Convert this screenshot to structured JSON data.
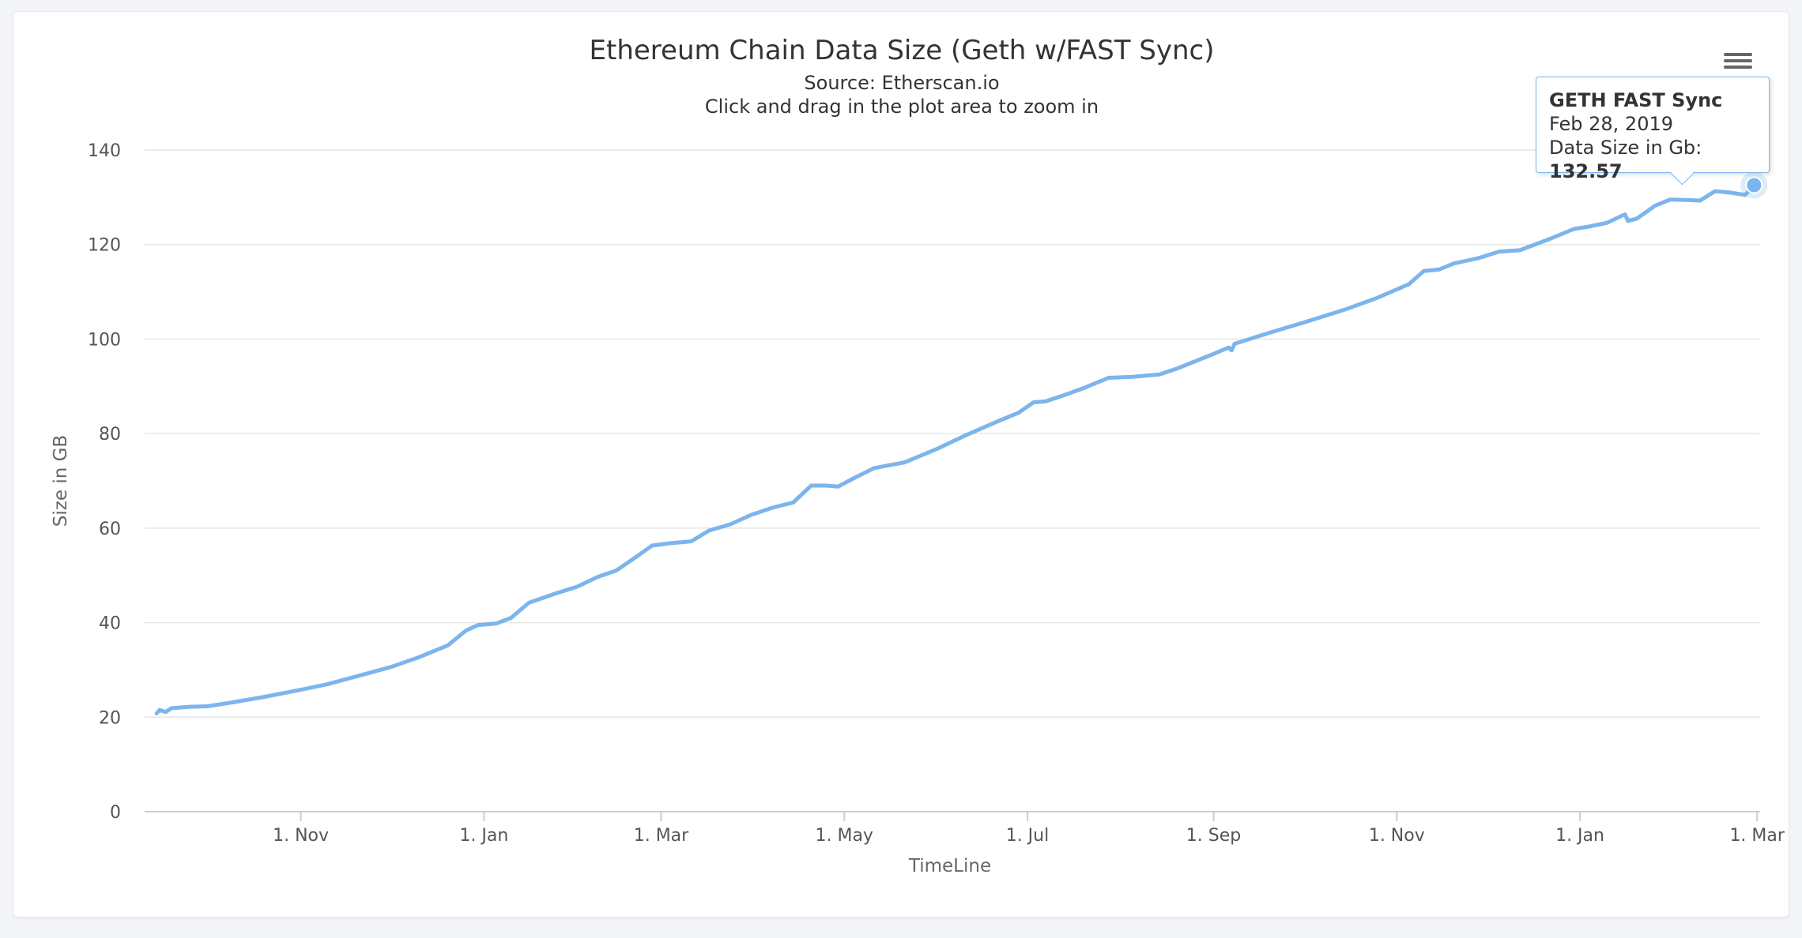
{
  "chart_data": {
    "type": "line",
    "title": "Ethereum Chain Data Size (Geth w/FAST Sync)",
    "subtitle": "Source: Etherscan.io",
    "subtitle2": "Click and drag in the plot area to zoom in",
    "xlabel": "TimeLine",
    "ylabel": "Size in GB",
    "ylim": [
      0,
      140
    ],
    "yticks": [
      0,
      20,
      40,
      60,
      80,
      100,
      120,
      140
    ],
    "xlim": [
      "2017-09-10",
      "2019-03-02"
    ],
    "xticks": [
      {
        "date": "2017-11-01",
        "label": "1. Nov"
      },
      {
        "date": "2018-01-01",
        "label": "1. Jan"
      },
      {
        "date": "2018-03-01",
        "label": "1. Mar"
      },
      {
        "date": "2018-05-01",
        "label": "1. May"
      },
      {
        "date": "2018-07-01",
        "label": "1. Jul"
      },
      {
        "date": "2018-09-01",
        "label": "1. Sep"
      },
      {
        "date": "2018-11-01",
        "label": "1. Nov"
      },
      {
        "date": "2019-01-01",
        "label": "1. Jan"
      },
      {
        "date": "2019-03-01",
        "label": "1. Mar"
      }
    ],
    "grid": true,
    "legend": "none",
    "color": "#7cb5ec",
    "series": [
      {
        "points": [
          [
            "2017-09-14",
            20.8
          ],
          [
            "2017-09-15",
            21.5
          ],
          [
            "2017-09-17",
            21.1
          ],
          [
            "2017-09-19",
            21.9
          ],
          [
            "2017-09-25",
            22.2
          ],
          [
            "2017-10-01",
            22.3
          ],
          [
            "2017-10-10",
            23.2
          ],
          [
            "2017-10-20",
            24.3
          ],
          [
            "2017-11-01",
            25.8
          ],
          [
            "2017-11-10",
            27.0
          ],
          [
            "2017-11-20",
            28.7
          ],
          [
            "2017-12-01",
            30.6
          ],
          [
            "2017-12-10",
            32.6
          ],
          [
            "2017-12-20",
            35.2
          ],
          [
            "2017-12-26",
            38.3
          ],
          [
            "2017-12-30",
            39.5
          ],
          [
            "2018-01-05",
            39.8
          ],
          [
            "2018-01-10",
            41.0
          ],
          [
            "2018-01-16",
            44.2
          ],
          [
            "2018-01-25",
            46.2
          ],
          [
            "2018-02-01",
            47.6
          ],
          [
            "2018-02-08",
            49.7
          ],
          [
            "2018-02-14",
            51.0
          ],
          [
            "2018-02-20",
            53.6
          ],
          [
            "2018-02-26",
            56.3
          ],
          [
            "2018-03-04",
            56.8
          ],
          [
            "2018-03-11",
            57.2
          ],
          [
            "2018-03-17",
            59.5
          ],
          [
            "2018-03-24",
            60.8
          ],
          [
            "2018-03-31",
            62.8
          ],
          [
            "2018-04-07",
            64.3
          ],
          [
            "2018-04-14",
            65.4
          ],
          [
            "2018-04-20",
            69.0
          ],
          [
            "2018-04-25",
            69.0
          ],
          [
            "2018-04-29",
            68.8
          ],
          [
            "2018-05-04",
            70.5
          ],
          [
            "2018-05-11",
            72.7
          ],
          [
            "2018-05-16",
            73.3
          ],
          [
            "2018-05-21",
            73.9
          ],
          [
            "2018-06-01",
            76.8
          ],
          [
            "2018-06-10",
            79.5
          ],
          [
            "2018-06-20",
            82.3
          ],
          [
            "2018-06-28",
            84.4
          ],
          [
            "2018-07-03",
            86.6
          ],
          [
            "2018-07-07",
            86.8
          ],
          [
            "2018-07-13",
            88.1
          ],
          [
            "2018-07-20",
            89.7
          ],
          [
            "2018-07-28",
            91.8
          ],
          [
            "2018-08-05",
            92.0
          ],
          [
            "2018-08-14",
            92.5
          ],
          [
            "2018-08-20",
            93.8
          ],
          [
            "2018-08-31",
            96.6
          ],
          [
            "2018-09-06",
            98.2
          ],
          [
            "2018-09-07",
            97.6
          ],
          [
            "2018-09-08",
            99.0
          ],
          [
            "2018-09-20",
            101.4
          ],
          [
            "2018-10-01",
            103.5
          ],
          [
            "2018-10-15",
            106.3
          ],
          [
            "2018-10-25",
            108.6
          ],
          [
            "2018-11-05",
            111.6
          ],
          [
            "2018-11-10",
            114.4
          ],
          [
            "2018-11-15",
            114.7
          ],
          [
            "2018-11-20",
            116.0
          ],
          [
            "2018-11-28",
            117.1
          ],
          [
            "2018-12-05",
            118.5
          ],
          [
            "2018-12-12",
            118.8
          ],
          [
            "2018-12-22",
            121.2
          ],
          [
            "2018-12-30",
            123.3
          ],
          [
            "2019-01-04",
            123.8
          ],
          [
            "2019-01-10",
            124.6
          ],
          [
            "2019-01-16",
            126.4
          ],
          [
            "2019-01-17",
            125.0
          ],
          [
            "2019-01-20",
            125.5
          ],
          [
            "2019-01-26",
            128.2
          ],
          [
            "2019-01-31",
            129.5
          ],
          [
            "2019-02-06",
            129.4
          ],
          [
            "2019-02-10",
            129.3
          ],
          [
            "2019-02-15",
            131.3
          ],
          [
            "2019-02-20",
            131.0
          ],
          [
            "2019-02-25",
            130.5
          ],
          [
            "2019-02-28",
            132.57
          ]
        ]
      }
    ]
  },
  "tooltip": {
    "series": "GETH FAST Sync",
    "date": "Feb 28, 2019",
    "value_label": "Data Size in Gb:",
    "value": "132.57"
  },
  "menu": {
    "icon": "hamburger-menu-icon"
  }
}
